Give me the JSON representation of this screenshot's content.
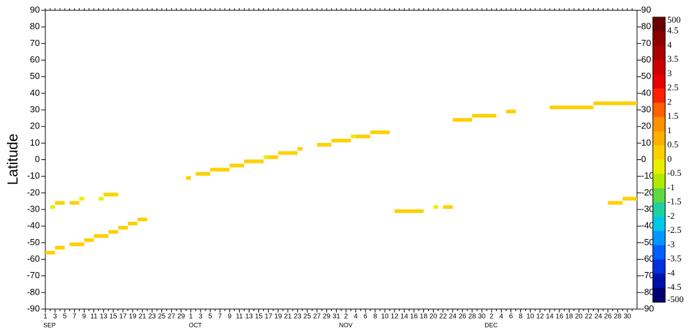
{
  "chart_data": {
    "type": "latitude-time",
    "y_label": "Latitude",
    "ylim": [
      -90,
      90
    ],
    "yticks": [
      -90,
      -80,
      -70,
      -60,
      -50,
      -40,
      -30,
      -20,
      -10,
      0,
      10,
      20,
      30,
      40,
      50,
      60,
      70,
      80,
      90
    ],
    "x_groups": [
      {
        "label": "SEP",
        "days": [
          "1",
          null,
          "3",
          null,
          "5",
          null,
          "7",
          null,
          {
            "label": "9",
            "color": "#ff0000"
          },
          null,
          "11",
          null,
          "13",
          null,
          "15",
          null,
          "17",
          null,
          "19",
          null,
          "21",
          null,
          {
            "label": "23",
            "color": "#ff0000"
          },
          null,
          "25",
          null,
          "27",
          null,
          "29",
          null
        ]
      },
      {
        "label": "OCT",
        "days": [
          "1",
          null,
          "3",
          null,
          "5",
          null,
          {
            "label": "7",
            "color": "#ff0000"
          },
          null,
          "9",
          null,
          "11",
          null,
          "13",
          null,
          "15",
          null,
          "17",
          null,
          "19",
          null,
          {
            "label": "21",
            "color": "#ff0000"
          },
          null,
          "23",
          null,
          "25",
          null,
          "27",
          null,
          "29",
          null,
          "31"
        ]
      },
      {
        "label": "NOV",
        "days": [
          null,
          "2",
          null,
          {
            "label": "4",
            "color": "#ff0000"
          },
          null,
          "6",
          null,
          "8",
          null,
          "10",
          null,
          "12",
          null,
          "14",
          null,
          "16",
          null,
          {
            "label": "18",
            "color": "#ff0000"
          },
          null,
          "20",
          null,
          "22",
          null,
          "24",
          null,
          "26",
          null,
          "28",
          null,
          "30"
        ]
      },
      {
        "label": "DEC",
        "days": [
          null,
          {
            "label": "2",
            "color": "#ff0000"
          },
          null,
          "4",
          null,
          "6",
          null,
          "8",
          null,
          "10",
          null,
          "12",
          null,
          "14",
          null,
          {
            "label": "16",
            "color": "#ff0000"
          },
          null,
          "18",
          null,
          "20",
          null,
          "22",
          null,
          "24",
          null,
          "26",
          null,
          "28",
          null,
          {
            "label": "30",
            "color": "#ff0000"
          },
          null
        ]
      }
    ],
    "segments": {
      "x_start": [
        0,
        2,
        5,
        8,
        10,
        13,
        15,
        17,
        19,
        1,
        2,
        5,
        7,
        11,
        12,
        29,
        31,
        34,
        35,
        38,
        41,
        45,
        46,
        48,
        52,
        56,
        59,
        63,
        64,
        67,
        72,
        80,
        82,
        84,
        88,
        90,
        95,
        104,
        113,
        116,
        119
      ],
      "x_end": [
        1,
        3,
        7,
        9,
        12,
        14,
        16,
        18,
        20,
        1,
        3,
        6,
        7,
        11,
        14,
        29,
        33,
        34,
        37,
        40,
        44,
        45,
        47,
        51,
        52,
        58,
        62,
        63,
        66,
        70,
        77,
        80,
        83,
        87,
        89,
        92,
        96,
        112,
        121,
        118,
        121
      ],
      "y": [
        -56,
        -53,
        -51,
        -48.5,
        -46,
        -43.5,
        -41,
        -38.5,
        -36,
        -28.5,
        -26,
        -26,
        -23.5,
        -23.5,
        -21,
        -11,
        -8.5,
        -6,
        -6,
        -3.5,
        -1,
        1.5,
        1.5,
        4,
        6.5,
        9,
        11.5,
        14,
        14,
        16.5,
        -31,
        -28.5,
        -28.5,
        24,
        26.5,
        26.5,
        29,
        31.5,
        34,
        -26,
        -23.5
      ],
      "values": [
        0.25,
        0.25,
        0.25,
        0.25,
        0.25,
        0.25,
        0.25,
        0.25,
        0.25,
        -0.25,
        0.25,
        0.25,
        -0.25,
        -0.25,
        0.25,
        0.25,
        0.25,
        0.25,
        0.25,
        0.25,
        0.25,
        -0.25,
        0.25,
        0.25,
        0.25,
        0.25,
        0.25,
        -0.25,
        0.25,
        0.25,
        0.25,
        -0.25,
        0.25,
        0.25,
        0.25,
        0.25,
        0.25,
        0.25,
        0.25,
        0.25,
        0.25
      ]
    },
    "colorbar": {
      "labels": [
        500,
        4.5,
        4,
        3.5,
        3,
        2.5,
        2,
        1.5,
        1,
        0.5,
        0,
        -0.5,
        -1,
        -1.5,
        -2,
        -2.5,
        -3,
        -3.5,
        -4,
        -4.5,
        -500
      ],
      "colors": [
        "#6b0000",
        "#8b0000",
        "#ab0000",
        "#cc0000",
        "#e60000",
        "#ff2000",
        "#ff6000",
        "#ff9000",
        "#ffb000",
        "#ffd000",
        "#e8f000",
        "#b0e800",
        "#60d840",
        "#20d0a0",
        "#00c8e8",
        "#0098ff",
        "#0060ff",
        "#0030e0",
        "#0010a8",
        "#000070"
      ]
    }
  }
}
